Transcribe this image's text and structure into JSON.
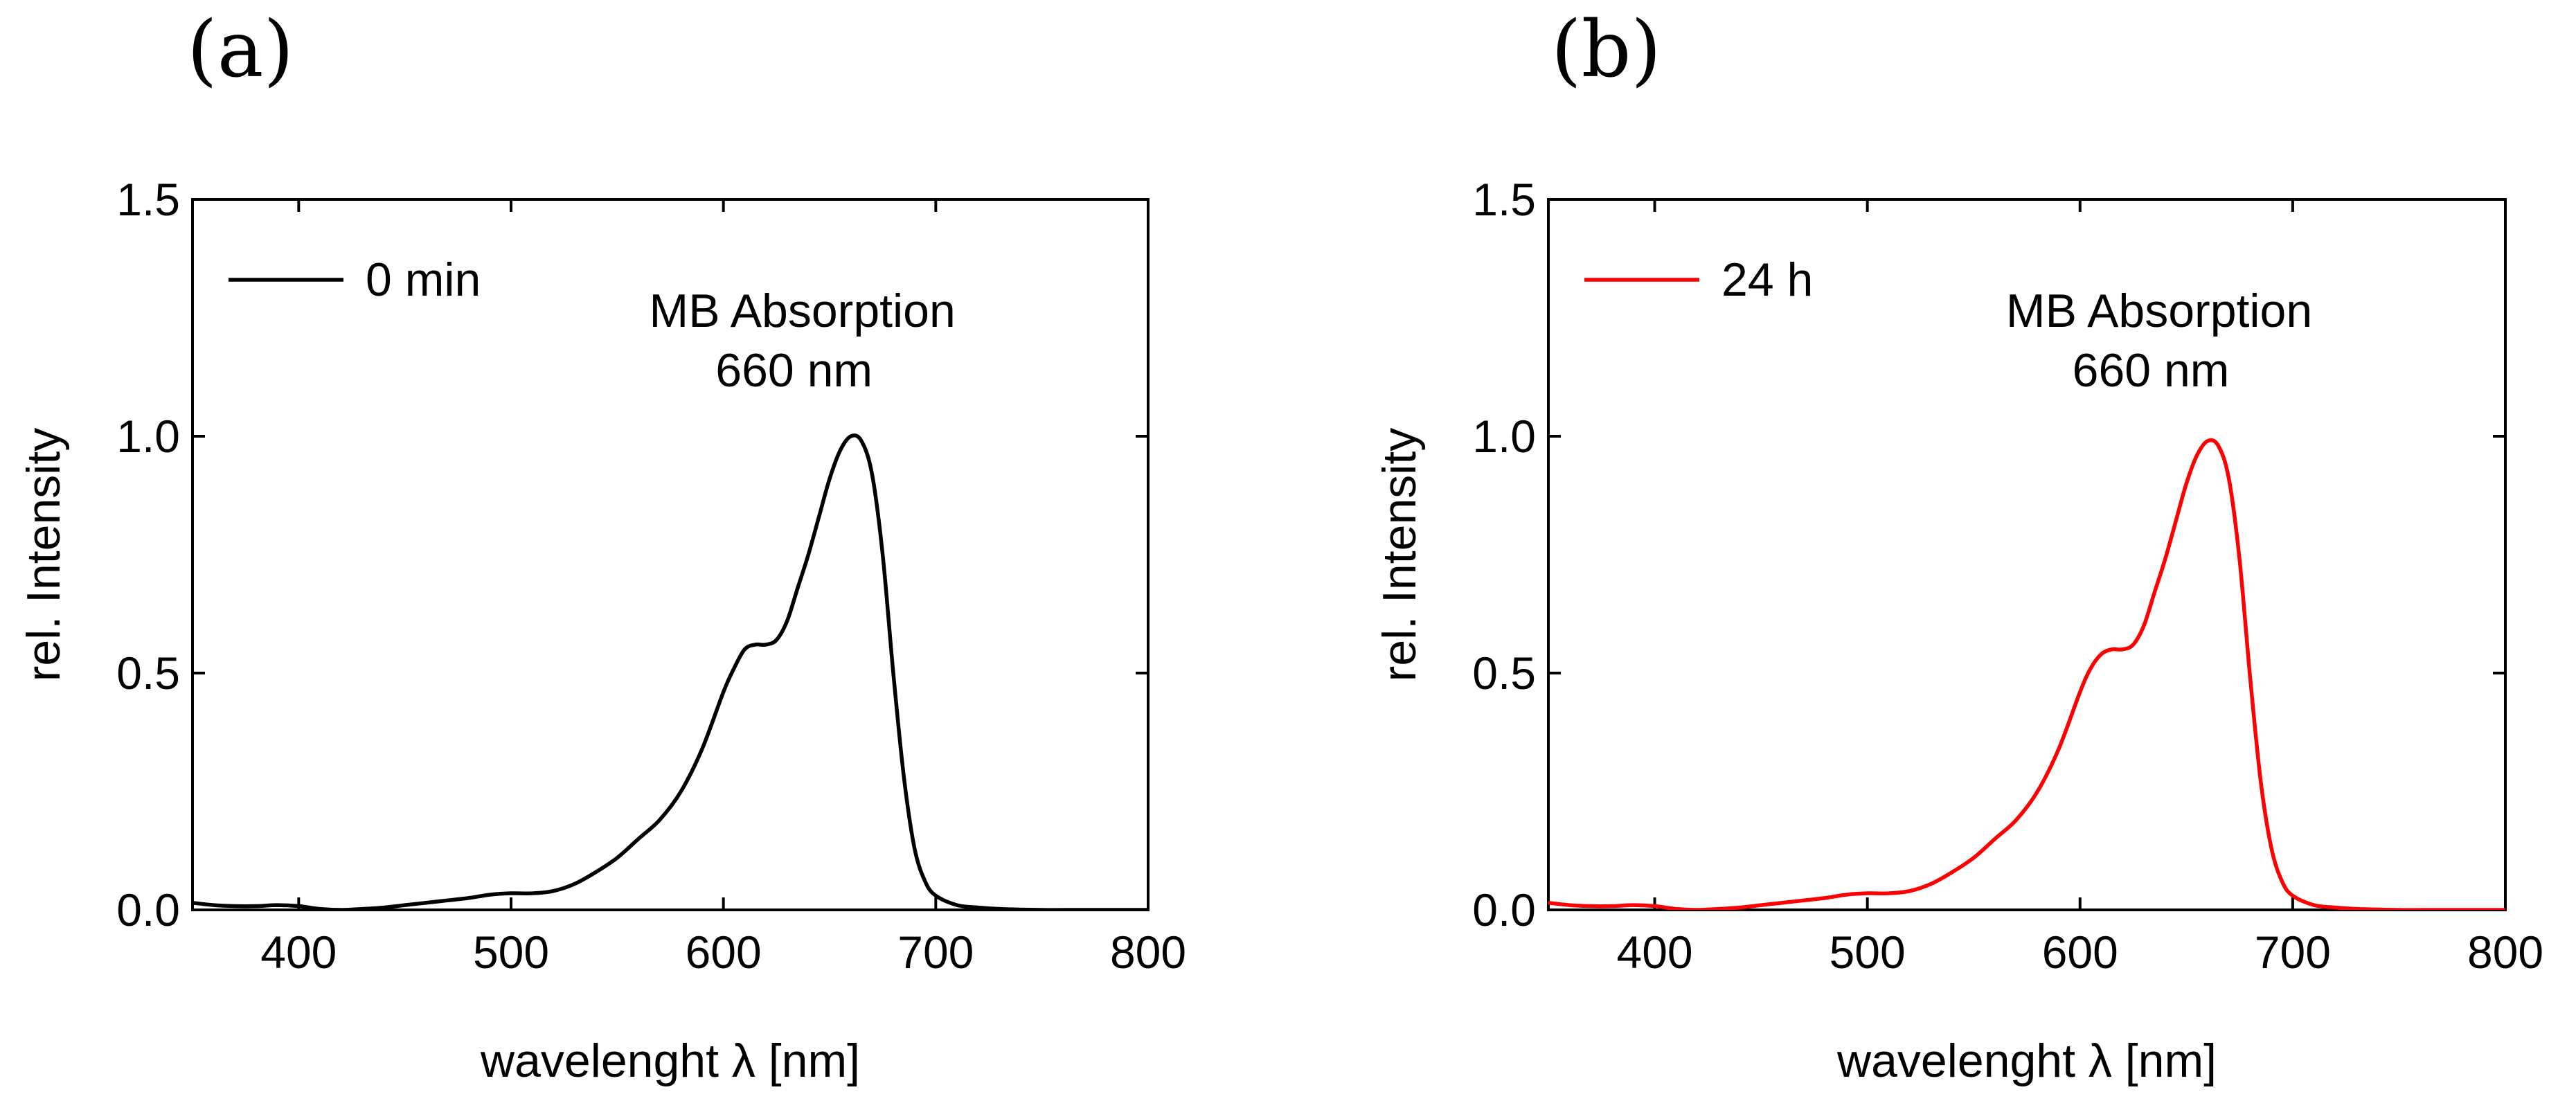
{
  "chart_data": [
    {
      "type": "line",
      "panel_label": "(a)",
      "xlabel": "wavelenght λ [nm]",
      "ylabel": "rel. Intensity",
      "xlim": [
        350,
        800
      ],
      "ylim": [
        0,
        1.5
      ],
      "x_ticks": [
        400,
        500,
        600,
        700,
        800
      ],
      "x_tick_labels": [
        "400",
        "500",
        "600",
        "700",
        "800"
      ],
      "y_ticks": [
        0,
        0.5,
        1.0,
        1.5
      ],
      "y_tick_labels": [
        "0.0",
        "0.5",
        "1.0",
        "1.5"
      ],
      "legend": {
        "position": "top-left",
        "entries": [
          {
            "label": "0 min",
            "color": "#000000"
          }
        ]
      },
      "annotations": [
        {
          "line1": "MB Absorption",
          "line2": "660 nm",
          "x": 660,
          "y": 1.0
        }
      ],
      "series": [
        {
          "name": "0 min",
          "color": "#000000",
          "x": [
            350,
            360,
            370,
            380,
            390,
            400,
            410,
            420,
            430,
            440,
            450,
            460,
            470,
            480,
            490,
            500,
            510,
            520,
            530,
            540,
            550,
            560,
            570,
            580,
            590,
            600,
            605,
            610,
            615,
            620,
            625,
            630,
            635,
            640,
            645,
            650,
            655,
            660,
            665,
            670,
            675,
            680,
            685,
            690,
            695,
            700,
            710,
            720,
            730,
            750,
            770,
            800
          ],
          "y": [
            0.015,
            0.01,
            0.008,
            0.008,
            0.01,
            0.008,
            0.002,
            0.0,
            0.002,
            0.005,
            0.01,
            0.015,
            0.02,
            0.025,
            0.032,
            0.035,
            0.035,
            0.04,
            0.055,
            0.08,
            0.11,
            0.15,
            0.19,
            0.25,
            0.34,
            0.46,
            0.51,
            0.55,
            0.56,
            0.56,
            0.57,
            0.61,
            0.68,
            0.75,
            0.83,
            0.91,
            0.97,
            1.0,
            0.99,
            0.92,
            0.75,
            0.5,
            0.28,
            0.13,
            0.06,
            0.03,
            0.01,
            0.005,
            0.002,
            0.0,
            0.0,
            0.0
          ]
        }
      ]
    },
    {
      "type": "line",
      "panel_label": "(b)",
      "xlabel": "wavelenght λ [nm]",
      "ylabel": "rel. Intensity",
      "xlim": [
        350,
        800
      ],
      "ylim": [
        0,
        1.5
      ],
      "x_ticks": [
        400,
        500,
        600,
        700,
        800
      ],
      "x_tick_labels": [
        "400",
        "500",
        "600",
        "700",
        "800"
      ],
      "y_ticks": [
        0,
        0.5,
        1.0,
        1.5
      ],
      "y_tick_labels": [
        "0.0",
        "0.5",
        "1.0",
        "1.5"
      ],
      "legend": {
        "position": "top-left",
        "entries": [
          {
            "label": "24 h",
            "color": "#ff0000"
          }
        ]
      },
      "annotations": [
        {
          "line1": "MB Absorption",
          "line2": "660 nm",
          "x": 660,
          "y": 0.99
        }
      ],
      "series": [
        {
          "name": "24 h",
          "color": "#ff0000",
          "x": [
            350,
            360,
            370,
            380,
            390,
            400,
            410,
            420,
            430,
            440,
            450,
            460,
            470,
            480,
            490,
            500,
            510,
            520,
            530,
            540,
            550,
            560,
            570,
            580,
            590,
            600,
            605,
            610,
            615,
            620,
            625,
            630,
            635,
            640,
            645,
            650,
            655,
            660,
            665,
            670,
            675,
            680,
            685,
            690,
            695,
            700,
            710,
            720,
            730,
            750,
            770,
            800
          ],
          "y": [
            0.015,
            0.01,
            0.008,
            0.008,
            0.01,
            0.008,
            0.002,
            0.0,
            0.002,
            0.005,
            0.01,
            0.015,
            0.02,
            0.025,
            0.032,
            0.035,
            0.035,
            0.04,
            0.055,
            0.08,
            0.11,
            0.15,
            0.19,
            0.25,
            0.34,
            0.46,
            0.51,
            0.54,
            0.55,
            0.55,
            0.56,
            0.6,
            0.67,
            0.74,
            0.82,
            0.9,
            0.96,
            0.99,
            0.98,
            0.91,
            0.74,
            0.49,
            0.27,
            0.13,
            0.06,
            0.03,
            0.01,
            0.005,
            0.002,
            0.0,
            0.0,
            0.0
          ]
        }
      ]
    }
  ]
}
